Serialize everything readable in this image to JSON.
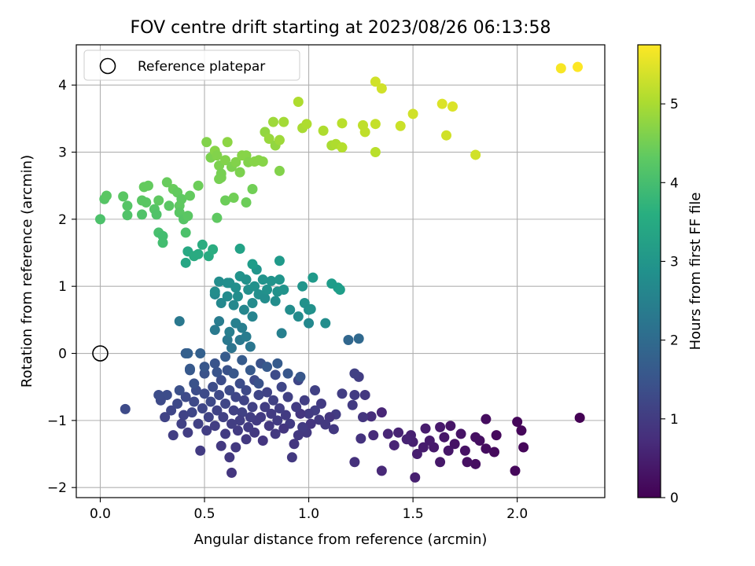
{
  "chart_data": {
    "type": "scatter",
    "title": "FOV centre drift starting at 2023/08/26 06:13:58",
    "xlabel": "Angular distance from reference (arcmin)",
    "ylabel": "Rotation from reference (arcmin)",
    "xlim": [
      -0.115,
      2.42
    ],
    "ylim": [
      -2.15,
      4.6
    ],
    "xticks": [
      0.0,
      0.5,
      1.0,
      1.5,
      2.0
    ],
    "xtick_labels": [
      "0.0",
      "0.5",
      "1.0",
      "1.5",
      "2.0"
    ],
    "yticks": [
      -2,
      -1,
      0,
      1,
      2,
      3,
      4
    ],
    "ytick_labels": [
      "−2",
      "−1",
      "0",
      "1",
      "2",
      "3",
      "4"
    ],
    "grid": true,
    "legend": {
      "position": "upper-left",
      "entries": [
        "Reference platepar"
      ]
    },
    "colormap": "viridis",
    "colorbar": {
      "label": "Hours from first FF file",
      "range": [
        0,
        5.75
      ],
      "ticks": [
        0,
        1,
        2,
        3,
        4,
        5
      ],
      "tick_labels": [
        "0",
        "1",
        "2",
        "3",
        "4",
        "5"
      ]
    },
    "reference_point": {
      "x": 0.0,
      "y": 0.0,
      "marker": "open-circle"
    },
    "points": [
      [
        2.3,
        -0.96,
        0.0
      ],
      [
        2.02,
        -1.15,
        0.1
      ],
      [
        2.03,
        -1.4,
        0.08
      ],
      [
        2.0,
        -1.02,
        0.1
      ],
      [
        1.99,
        -1.75,
        0.12
      ],
      [
        1.9,
        -1.22,
        0.15
      ],
      [
        1.89,
        -1.47,
        0.15
      ],
      [
        1.85,
        -0.98,
        0.2
      ],
      [
        1.85,
        -1.42,
        0.2
      ],
      [
        1.82,
        -1.3,
        0.22
      ],
      [
        1.8,
        -1.65,
        0.22
      ],
      [
        1.8,
        -1.25,
        0.25
      ],
      [
        1.76,
        -1.62,
        0.25
      ],
      [
        1.75,
        -1.45,
        0.28
      ],
      [
        1.73,
        -1.2,
        0.3
      ],
      [
        1.7,
        -1.35,
        0.3
      ],
      [
        1.68,
        -1.08,
        0.32
      ],
      [
        1.67,
        -1.45,
        0.35
      ],
      [
        1.65,
        -1.25,
        0.35
      ],
      [
        1.63,
        -1.62,
        0.38
      ],
      [
        1.63,
        -1.1,
        0.4
      ],
      [
        1.6,
        -1.4,
        0.4
      ],
      [
        1.58,
        -1.3,
        0.42
      ],
      [
        1.56,
        -1.12,
        0.45
      ],
      [
        1.55,
        -1.4,
        0.45
      ],
      [
        1.52,
        -1.5,
        0.48
      ],
      [
        1.51,
        -1.85,
        0.5
      ],
      [
        1.5,
        -1.32,
        0.5
      ],
      [
        1.49,
        -1.22,
        0.52
      ],
      [
        1.47,
        -1.28,
        0.55
      ],
      [
        1.43,
        -1.18,
        0.55
      ],
      [
        1.41,
        -1.37,
        0.58
      ],
      [
        1.38,
        -1.2,
        0.6
      ],
      [
        1.35,
        -0.88,
        0.6
      ],
      [
        1.35,
        -1.75,
        0.65
      ],
      [
        1.31,
        -1.22,
        0.7
      ],
      [
        1.3,
        -0.94,
        0.75
      ],
      [
        1.22,
        -1.62,
        0.8
      ],
      [
        1.25,
        -1.27,
        0.85
      ],
      [
        1.26,
        -0.95,
        0.9
      ],
      [
        1.27,
        -0.62,
        0.95
      ],
      [
        1.22,
        -0.62,
        1.0
      ],
      [
        1.24,
        -0.35,
        1.05
      ],
      [
        1.22,
        -0.3,
        1.1
      ],
      [
        1.21,
        -0.77,
        1.0
      ],
      [
        1.16,
        -0.6,
        1.05
      ],
      [
        1.13,
        -0.91,
        1.0
      ],
      [
        1.12,
        -1.13,
        0.95
      ],
      [
        1.1,
        -0.95,
        0.9
      ],
      [
        1.08,
        -1.06,
        0.95
      ],
      [
        1.06,
        -0.75,
        1.0
      ],
      [
        1.05,
        -0.99,
        0.95
      ],
      [
        1.03,
        -0.85,
        1.05
      ],
      [
        1.03,
        -0.55,
        1.1
      ],
      [
        1.01,
        -1.05,
        0.9
      ],
      [
        1.0,
        -0.9,
        1.0
      ],
      [
        0.99,
        -1.18,
        0.95
      ],
      [
        0.98,
        -0.7,
        1.05
      ],
      [
        0.97,
        -1.1,
        1.0
      ],
      [
        0.96,
        -0.9,
        0.9
      ],
      [
        0.95,
        -0.4,
        1.2
      ],
      [
        0.95,
        -1.22,
        0.95
      ],
      [
        0.94,
        -0.8,
        1.0
      ],
      [
        0.93,
        -1.35,
        0.9
      ],
      [
        0.92,
        -1.55,
        0.95
      ],
      [
        0.91,
        -1.05,
        1.0
      ],
      [
        0.9,
        -0.65,
        1.1
      ],
      [
        0.89,
        -0.92,
        1.0
      ],
      [
        0.88,
        -1.12,
        0.9
      ],
      [
        0.87,
        -0.5,
        1.2
      ],
      [
        0.86,
        -0.82,
        1.05
      ],
      [
        0.85,
        -1.0,
        1.0
      ],
      [
        0.84,
        -1.2,
        0.95
      ],
      [
        0.84,
        -0.32,
        1.3
      ],
      [
        0.83,
        -0.7,
        1.1
      ],
      [
        0.82,
        -0.9,
        1.0
      ],
      [
        0.81,
        -1.08,
        0.95
      ],
      [
        0.8,
        -0.58,
        1.15
      ],
      [
        0.79,
        -0.8,
        1.05
      ],
      [
        0.78,
        -1.3,
        0.9
      ],
      [
        0.77,
        -0.95,
        1.0
      ],
      [
        0.77,
        -0.15,
        1.45
      ],
      [
        0.76,
        -0.62,
        1.2
      ],
      [
        0.75,
        -1.0,
        1.0
      ],
      [
        0.74,
        -1.18,
        0.95
      ],
      [
        0.74,
        -0.4,
        1.3
      ],
      [
        0.73,
        -0.8,
        1.1
      ],
      [
        0.72,
        -0.95,
        1.05
      ],
      [
        0.71,
        -1.1,
        1.0
      ],
      [
        0.7,
        -0.55,
        1.25
      ],
      [
        0.7,
        -1.28,
        0.95
      ],
      [
        0.69,
        -0.7,
        1.15
      ],
      [
        0.68,
        -0.88,
        1.1
      ],
      [
        0.67,
        -1.0,
        1.05
      ],
      [
        0.67,
        -0.45,
        1.35
      ],
      [
        0.66,
        -1.15,
        1.0
      ],
      [
        0.65,
        -0.65,
        1.2
      ],
      [
        0.65,
        -1.4,
        0.95
      ],
      [
        0.64,
        -0.85,
        1.1
      ],
      [
        0.63,
        -1.05,
        1.05
      ],
      [
        0.63,
        -1.78,
        0.9
      ],
      [
        0.62,
        -0.55,
        1.3
      ],
      [
        0.62,
        -1.55,
        0.95
      ],
      [
        0.61,
        -0.25,
        1.45
      ],
      [
        0.6,
        -0.75,
        1.2
      ],
      [
        0.6,
        -1.2,
        1.0
      ],
      [
        0.59,
        -0.95,
        1.1
      ],
      [
        0.58,
        -0.4,
        1.35
      ],
      [
        0.58,
        -1.38,
        0.95
      ],
      [
        0.57,
        -0.62,
        1.25
      ],
      [
        0.56,
        -0.85,
        1.15
      ],
      [
        0.55,
        -1.08,
        1.05
      ],
      [
        0.55,
        -0.15,
        1.5
      ],
      [
        0.54,
        -0.5,
        1.35
      ],
      [
        0.53,
        -0.72,
        1.25
      ],
      [
        0.52,
        -0.95,
        1.15
      ],
      [
        0.51,
        -1.15,
        1.05
      ],
      [
        0.5,
        -0.3,
        1.45
      ],
      [
        0.5,
        -0.6,
        1.3
      ],
      [
        0.49,
        -0.82,
        1.2
      ],
      [
        0.48,
        -1.45,
        1.0
      ],
      [
        0.47,
        -1.05,
        1.1
      ],
      [
        0.46,
        -0.55,
        1.35
      ],
      [
        0.45,
        -0.72,
        1.25
      ],
      [
        0.44,
        -0.88,
        1.2
      ],
      [
        0.43,
        -0.25,
        1.55
      ],
      [
        0.42,
        -1.18,
        1.05
      ],
      [
        0.41,
        -0.65,
        1.3
      ],
      [
        0.4,
        -0.92,
        1.15
      ],
      [
        0.39,
        -1.05,
        1.1
      ],
      [
        0.38,
        -0.55,
        1.4
      ],
      [
        0.37,
        -0.75,
        1.25
      ],
      [
        0.35,
        -1.22,
        1.05
      ],
      [
        0.34,
        -0.85,
        1.2
      ],
      [
        0.32,
        -0.62,
        1.35
      ],
      [
        0.31,
        -0.95,
        1.15
      ],
      [
        0.29,
        -0.7,
        1.3
      ],
      [
        0.28,
        -0.62,
        1.35
      ],
      [
        0.41,
        -0.0,
        1.7
      ],
      [
        0.42,
        0.0,
        1.75
      ],
      [
        0.48,
        0.0,
        1.75
      ],
      [
        0.43,
        -0.23,
        1.6
      ],
      [
        0.12,
        -0.83,
        1.3
      ],
      [
        0.45,
        -0.45,
        1.45
      ],
      [
        0.5,
        -0.2,
        1.55
      ],
      [
        0.56,
        -0.28,
        1.5
      ],
      [
        0.6,
        -0.05,
        1.65
      ],
      [
        0.64,
        -0.3,
        1.55
      ],
      [
        0.68,
        -0.1,
        1.65
      ],
      [
        0.72,
        -0.25,
        1.6
      ],
      [
        0.76,
        -0.45,
        1.45
      ],
      [
        0.8,
        -0.2,
        1.6
      ],
      [
        0.85,
        -0.15,
        1.65
      ],
      [
        0.9,
        -0.3,
        1.55
      ],
      [
        0.96,
        -0.35,
        1.55
      ],
      [
        1.19,
        0.2,
        1.9
      ],
      [
        1.24,
        0.22,
        1.95
      ],
      [
        0.38,
        0.48,
        2.3
      ],
      [
        0.55,
        0.35,
        2.35
      ],
      [
        0.57,
        0.48,
        2.4
      ],
      [
        0.61,
        0.2,
        2.3
      ],
      [
        0.62,
        0.32,
        2.45
      ],
      [
        0.63,
        0.08,
        2.2
      ],
      [
        0.65,
        0.45,
        2.5
      ],
      [
        0.67,
        0.2,
        2.3
      ],
      [
        0.68,
        0.38,
        2.45
      ],
      [
        0.7,
        0.25,
        2.4
      ],
      [
        0.72,
        0.1,
        2.25
      ],
      [
        0.73,
        0.55,
        2.6
      ],
      [
        0.87,
        0.3,
        2.5
      ],
      [
        0.55,
        0.88,
        2.7
      ],
      [
        0.58,
        0.75,
        2.7
      ],
      [
        0.57,
        1.07,
        2.8
      ],
      [
        0.61,
        0.85,
        2.75
      ],
      [
        0.62,
        1.05,
        2.85
      ],
      [
        0.64,
        0.72,
        2.7
      ],
      [
        0.65,
        0.98,
        2.85
      ],
      [
        0.66,
        0.85,
        2.8
      ],
      [
        0.67,
        1.15,
        2.95
      ],
      [
        0.69,
        0.65,
        2.65
      ],
      [
        0.7,
        1.1,
        2.9
      ],
      [
        0.71,
        0.95,
        2.85
      ],
      [
        0.73,
        0.75,
        2.75
      ],
      [
        0.74,
        1.0,
        2.9
      ],
      [
        0.75,
        1.25,
        3.0
      ],
      [
        0.76,
        0.88,
        2.85
      ],
      [
        0.78,
        1.1,
        2.95
      ],
      [
        0.79,
        0.82,
        2.8
      ],
      [
        0.8,
        0.95,
        2.9
      ],
      [
        0.82,
        1.08,
        2.95
      ],
      [
        0.84,
        0.78,
        2.8
      ],
      [
        0.85,
        0.92,
        2.9
      ],
      [
        0.86,
        1.1,
        3.0
      ],
      [
        0.86,
        1.38,
        3.1
      ],
      [
        0.88,
        0.95,
        2.95
      ],
      [
        0.91,
        0.65,
        2.8
      ],
      [
        0.95,
        0.55,
        2.75
      ],
      [
        0.97,
        1.0,
        3.0
      ],
      [
        0.98,
        0.75,
        2.9
      ],
      [
        1.0,
        0.45,
        2.7
      ],
      [
        1.0,
        0.65,
        2.85
      ],
      [
        1.01,
        0.66,
        2.9
      ],
      [
        1.02,
        1.13,
        3.1
      ],
      [
        1.08,
        0.45,
        2.8
      ],
      [
        1.11,
        1.04,
        3.15
      ],
      [
        1.14,
        0.98,
        3.15
      ],
      [
        1.15,
        0.95,
        3.2
      ],
      [
        0.55,
        0.92,
        2.8
      ],
      [
        0.61,
        1.05,
        2.85
      ],
      [
        0.67,
        1.56,
        3.3
      ],
      [
        0.73,
        1.33,
        3.15
      ],
      [
        0.41,
        1.35,
        3.4
      ],
      [
        0.42,
        1.52,
        3.45
      ],
      [
        0.45,
        1.45,
        3.5
      ],
      [
        0.47,
        1.48,
        3.5
      ],
      [
        0.49,
        1.62,
        3.55
      ],
      [
        0.52,
        1.45,
        3.5
      ],
      [
        0.54,
        1.55,
        3.55
      ],
      [
        0.0,
        2.0,
        4.1
      ],
      [
        0.02,
        2.3,
        4.2
      ],
      [
        0.03,
        2.35,
        4.25
      ],
      [
        0.11,
        2.34,
        4.25
      ],
      [
        0.13,
        2.2,
        4.2
      ],
      [
        0.13,
        2.06,
        4.15
      ],
      [
        0.2,
        2.07,
        4.15
      ],
      [
        0.2,
        2.28,
        4.25
      ],
      [
        0.21,
        2.48,
        4.35
      ],
      [
        0.22,
        2.25,
        4.25
      ],
      [
        0.23,
        2.5,
        4.35
      ],
      [
        0.26,
        2.15,
        4.2
      ],
      [
        0.27,
        2.07,
        4.15
      ],
      [
        0.28,
        2.28,
        4.3
      ],
      [
        0.28,
        1.8,
        4.05
      ],
      [
        0.3,
        1.75,
        4.0
      ],
      [
        0.3,
        1.65,
        4.0
      ],
      [
        0.32,
        2.55,
        4.4
      ],
      [
        0.33,
        2.2,
        4.25
      ],
      [
        0.35,
        2.45,
        4.4
      ],
      [
        0.37,
        2.4,
        4.35
      ],
      [
        0.38,
        2.2,
        4.3
      ],
      [
        0.38,
        2.1,
        4.25
      ],
      [
        0.39,
        2.3,
        4.3
      ],
      [
        0.4,
        2.0,
        4.2
      ],
      [
        0.41,
        1.8,
        4.1
      ],
      [
        0.42,
        2.05,
        4.25
      ],
      [
        0.43,
        2.35,
        4.35
      ],
      [
        0.47,
        2.5,
        4.45
      ],
      [
        0.56,
        2.02,
        4.3
      ],
      [
        0.57,
        2.6,
        4.55
      ],
      [
        0.6,
        2.28,
        4.45
      ],
      [
        0.64,
        2.32,
        4.5
      ],
      [
        0.7,
        2.25,
        4.45
      ],
      [
        0.73,
        2.45,
        4.5
      ],
      [
        0.51,
        3.15,
        4.65
      ],
      [
        0.53,
        2.92,
        4.6
      ],
      [
        0.55,
        3.02,
        4.7
      ],
      [
        0.56,
        2.95,
        4.65
      ],
      [
        0.57,
        2.8,
        4.6
      ],
      [
        0.58,
        2.68,
        4.55
      ],
      [
        0.58,
        2.62,
        4.55
      ],
      [
        0.6,
        2.88,
        4.65
      ],
      [
        0.61,
        3.15,
        4.75
      ],
      [
        0.63,
        2.78,
        4.6
      ],
      [
        0.65,
        2.85,
        4.65
      ],
      [
        0.67,
        2.7,
        4.6
      ],
      [
        0.68,
        2.95,
        4.7
      ],
      [
        0.7,
        2.95,
        4.7
      ],
      [
        0.71,
        2.85,
        4.65
      ],
      [
        0.74,
        2.86,
        4.7
      ],
      [
        0.76,
        2.88,
        4.7
      ],
      [
        0.78,
        2.86,
        4.7
      ],
      [
        0.79,
        3.3,
        4.8
      ],
      [
        0.81,
        3.2,
        4.85
      ],
      [
        0.83,
        3.45,
        4.9
      ],
      [
        0.84,
        3.1,
        4.8
      ],
      [
        0.86,
        2.72,
        4.65
      ],
      [
        0.88,
        3.45,
        4.95
      ],
      [
        0.86,
        3.18,
        4.9
      ],
      [
        0.95,
        3.75,
        5.05
      ],
      [
        0.97,
        3.36,
        5.0
      ],
      [
        0.99,
        3.42,
        5.05
      ],
      [
        1.07,
        3.32,
        5.05
      ],
      [
        1.11,
        3.1,
        5.0
      ],
      [
        1.13,
        3.12,
        5.05
      ],
      [
        1.16,
        3.07,
        5.1
      ],
      [
        1.16,
        3.43,
        5.15
      ],
      [
        1.26,
        3.4,
        5.2
      ],
      [
        1.27,
        3.3,
        5.2
      ],
      [
        1.32,
        3.42,
        5.25
      ],
      [
        1.32,
        3.0,
        5.15
      ],
      [
        1.32,
        4.05,
        5.35
      ],
      [
        1.35,
        3.95,
        5.35
      ],
      [
        1.44,
        3.39,
        5.3
      ],
      [
        1.5,
        3.57,
        5.35
      ],
      [
        1.64,
        3.72,
        5.45
      ],
      [
        1.66,
        3.25,
        5.35
      ],
      [
        1.69,
        3.68,
        5.45
      ],
      [
        1.8,
        2.96,
        5.35
      ],
      [
        2.21,
        4.25,
        5.7
      ],
      [
        2.29,
        4.27,
        5.75
      ]
    ]
  }
}
